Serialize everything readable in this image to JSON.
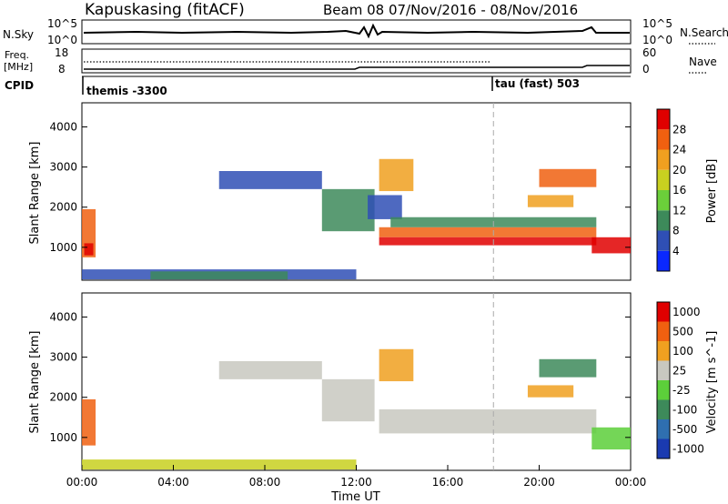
{
  "header": {
    "station": "Kapuskasing (fitACF)",
    "beam_date": "Beam 08  07/Nov/2016 - 08/Nov/2016"
  },
  "top_panels": {
    "nsky_label": "N.Sky",
    "nsky_ticks": [
      "10^5",
      "10^0"
    ],
    "nsearch_label": "N.Search",
    "nsearch_ticks": [
      "10^5",
      "10^0"
    ],
    "freq_label_1": "Freq.",
    "freq_label_2": "[MHz]",
    "freq_ticks": [
      "18",
      "8"
    ],
    "nave_label": "Nave",
    "nave_ticks": [
      "60",
      "0"
    ],
    "cpid_label": "CPID",
    "cpid_segments": [
      {
        "label": "themis -3300",
        "start_hour": 0
      },
      {
        "label": "tau (fast) 503",
        "start_hour": 18
      }
    ]
  },
  "x_axis": {
    "label": "Time UT",
    "ticks": [
      "00:00",
      "04:00",
      "08:00",
      "12:00",
      "16:00",
      "20:00",
      "00:00"
    ],
    "range_hours": [
      0,
      24
    ]
  },
  "chart_data": [
    {
      "type": "heatmap",
      "panel": "power",
      "ylabel": "Slant Range [km]",
      "yticks": [
        1000,
        2000,
        3000,
        4000
      ],
      "ylim": [
        180,
        4600
      ],
      "xlim_hours": [
        0,
        24
      ],
      "colorbar_label": "Power [dB]",
      "colorbar_ticks": [
        "4",
        "8",
        "12",
        "16",
        "20",
        "24",
        "28"
      ],
      "colorbar_colors": [
        "#0a28ff",
        "#2f4fb5",
        "#3d8a5a",
        "#6bcf3a",
        "#c8d020",
        "#f0a020",
        "#f06010",
        "#e00000"
      ],
      "regions": [
        {
          "t0": 0.0,
          "t1": 0.6,
          "r0": 750,
          "r1": 1950,
          "color": "#f06010"
        },
        {
          "t0": 0.1,
          "t1": 0.5,
          "r0": 800,
          "r1": 1100,
          "color": "#e00000"
        },
        {
          "t0": 0.0,
          "t1": 12.0,
          "r0": 200,
          "r1": 450,
          "color": "#2f4fb5"
        },
        {
          "t0": 3.0,
          "t1": 9.0,
          "r0": 200,
          "r1": 400,
          "color": "#3d8a5a"
        },
        {
          "t0": 6.0,
          "t1": 10.5,
          "r0": 2450,
          "r1": 2900,
          "color": "#2f4fb5"
        },
        {
          "t0": 10.5,
          "t1": 12.8,
          "r0": 1400,
          "r1": 2450,
          "color": "#3d8a5a"
        },
        {
          "t0": 12.5,
          "t1": 14.0,
          "r0": 1700,
          "r1": 2300,
          "color": "#2f4fb5"
        },
        {
          "t0": 13.0,
          "t1": 22.5,
          "r0": 1250,
          "r1": 1500,
          "color": "#f06010"
        },
        {
          "t0": 13.0,
          "t1": 22.5,
          "r0": 1050,
          "r1": 1250,
          "color": "#e00000"
        },
        {
          "t0": 13.5,
          "t1": 22.5,
          "r0": 1500,
          "r1": 1750,
          "color": "#3d8a5a"
        },
        {
          "t0": 13.0,
          "t1": 14.5,
          "r0": 2400,
          "r1": 3200,
          "color": "#f0a020"
        },
        {
          "t0": 20.0,
          "t1": 22.5,
          "r0": 2500,
          "r1": 2950,
          "color": "#f06010"
        },
        {
          "t0": 19.5,
          "t1": 21.5,
          "r0": 2000,
          "r1": 2300,
          "color": "#f0a020"
        },
        {
          "t0": 22.3,
          "t1": 24.0,
          "r0": 850,
          "r1": 1250,
          "color": "#e00000"
        }
      ]
    },
    {
      "type": "heatmap",
      "panel": "velocity",
      "ylabel": "Slant Range [km]",
      "yticks": [
        1000,
        2000,
        3000,
        4000
      ],
      "ylim": [
        180,
        4600
      ],
      "xlim_hours": [
        0,
        24
      ],
      "colorbar_label": "Velocity [m s^-1]",
      "colorbar_ticks": [
        "1000",
        "500",
        "100",
        "25",
        "-25",
        "-100",
        "-500",
        "-1000"
      ],
      "colorbar_colors": [
        "#1a3ab0",
        "#2f6fb0",
        "#3d8a5a",
        "#5ccf3a",
        "#c8c8c0",
        "#f0a020",
        "#f06010",
        "#e00000"
      ],
      "regions": [
        {
          "t0": 0.0,
          "t1": 0.6,
          "r0": 800,
          "r1": 1950,
          "color": "#f06010"
        },
        {
          "t0": 0.0,
          "t1": 12.0,
          "r0": 200,
          "r1": 450,
          "color": "#c8d020"
        },
        {
          "t0": 6.0,
          "t1": 10.5,
          "r0": 2450,
          "r1": 2900,
          "color": "#c8c8c0"
        },
        {
          "t0": 10.5,
          "t1": 12.8,
          "r0": 1400,
          "r1": 2450,
          "color": "#c8c8c0"
        },
        {
          "t0": 13.0,
          "t1": 22.5,
          "r0": 1100,
          "r1": 1700,
          "color": "#c8c8c0"
        },
        {
          "t0": 13.0,
          "t1": 14.5,
          "r0": 2400,
          "r1": 3200,
          "color": "#f0a020"
        },
        {
          "t0": 20.0,
          "t1": 22.5,
          "r0": 2500,
          "r1": 2950,
          "color": "#3d8a5a"
        },
        {
          "t0": 19.5,
          "t1": 21.5,
          "r0": 2000,
          "r1": 2300,
          "color": "#f0a020"
        },
        {
          "t0": 22.3,
          "t1": 24.0,
          "r0": 700,
          "r1": 1250,
          "color": "#5ccf3a"
        }
      ]
    }
  ]
}
